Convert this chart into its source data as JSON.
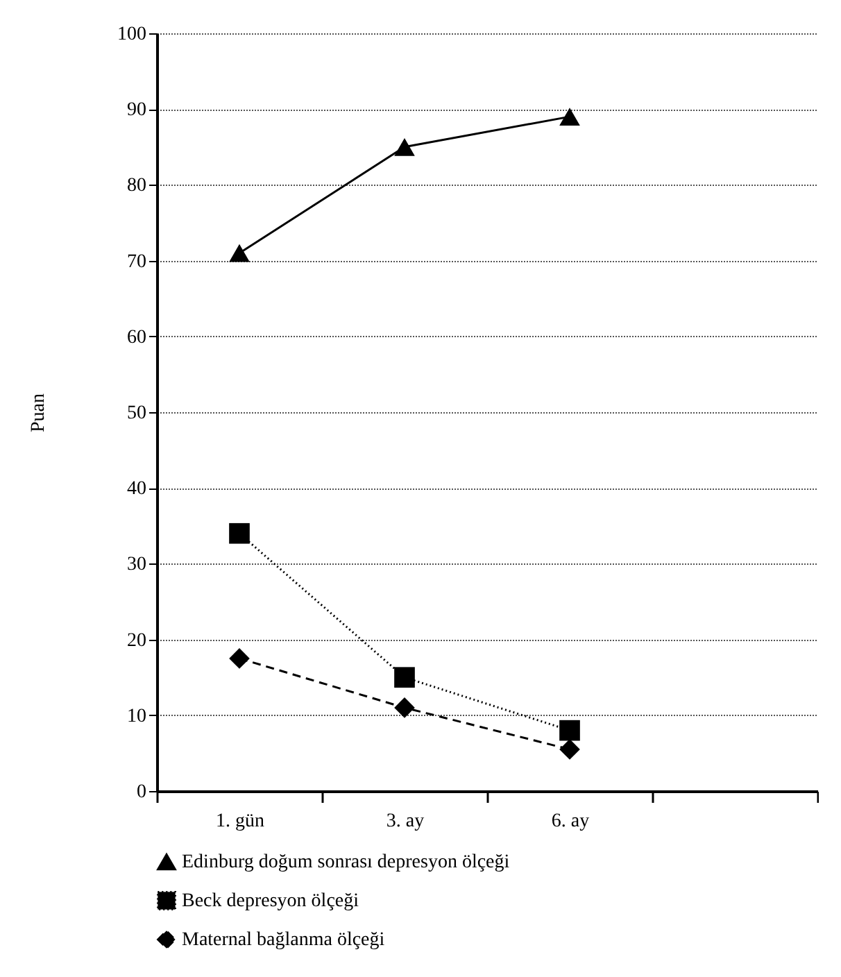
{
  "chart_data": {
    "type": "line",
    "ylabel": "Puan",
    "categories": [
      "1. gün",
      "3. ay",
      "6. ay",
      null
    ],
    "ylim": [
      0,
      100
    ],
    "yticks": [
      0,
      10,
      20,
      30,
      40,
      50,
      60,
      70,
      80,
      90,
      100
    ],
    "grid": "y",
    "legend": "bottom",
    "series": [
      {
        "name": "Edinburg doğum sonrası depresyon ölçeği",
        "color": "#000000",
        "marker": "triangle",
        "line_style": "solid",
        "values": [
          71,
          85,
          89,
          null
        ]
      },
      {
        "name": "Beck depresyon ölçeği",
        "color": "#000000",
        "marker": "square",
        "line_style": "dotted",
        "values": [
          34,
          15,
          8,
          null
        ]
      },
      {
        "name": "Maternal bağlanma ölçeği",
        "color": "#000000",
        "marker": "diamond",
        "line_style": "dashed",
        "values": [
          17.5,
          11,
          5.5,
          null
        ]
      }
    ]
  }
}
